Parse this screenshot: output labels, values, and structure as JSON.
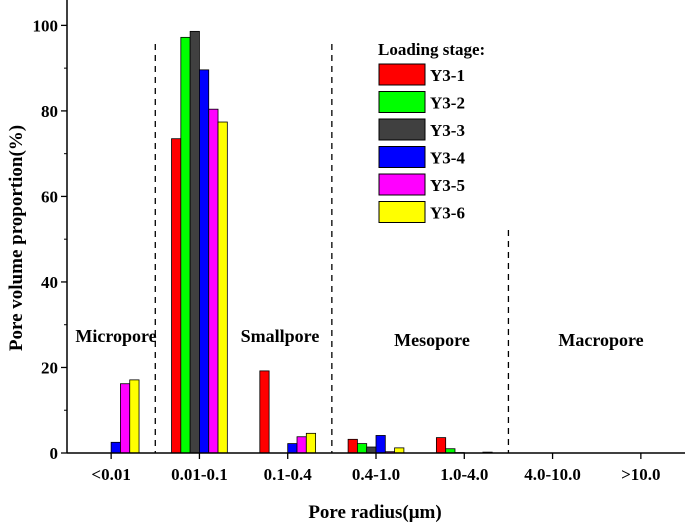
{
  "chart_data": {
    "type": "bar",
    "title": "",
    "xlabel": "Pore radius(μm)",
    "ylabel": "Pore volume proportion(%)",
    "ylim": [
      0,
      105
    ],
    "yticks": [
      0,
      20,
      40,
      60,
      80,
      100
    ],
    "grid": false,
    "legend_position": "top-right",
    "legend_title": "Loading stage:",
    "categories": [
      "<0.01",
      "0.01-0.1",
      "0.1-0.4",
      "0.4-1.0",
      "1.0-4.0",
      "4.0-10.0",
      ">10.0"
    ],
    "series": [
      {
        "name": "Y3-1",
        "color": "#ff0000",
        "values": [
          0,
          73.5,
          19.2,
          3.2,
          3.6,
          0,
          0
        ]
      },
      {
        "name": "Y3-2",
        "color": "#00ff00",
        "values": [
          0,
          97.2,
          0,
          2.2,
          1.0,
          0,
          0
        ]
      },
      {
        "name": "Y3-3",
        "color": "#404040",
        "values": [
          0,
          98.6,
          0,
          1.4,
          0.1,
          0,
          0
        ]
      },
      {
        "name": "Y3-4",
        "color": "#0000ff",
        "values": [
          2.5,
          89.6,
          2.2,
          4.1,
          0,
          0,
          0
        ]
      },
      {
        "name": "Y3-5",
        "color": "#ff00ff",
        "values": [
          16.2,
          80.4,
          3.8,
          0.3,
          0,
          0,
          0
        ]
      },
      {
        "name": "Y3-6",
        "color": "#ffff00",
        "values": [
          17.1,
          77.4,
          4.6,
          1.2,
          0.2,
          0,
          0
        ]
      }
    ],
    "regions": [
      {
        "label": "Micropore"
      },
      {
        "label": "Smallpore"
      },
      {
        "label": "Mesopore"
      },
      {
        "label": "Macropore"
      }
    ],
    "dividers_after_category": [
      0,
      2,
      4
    ]
  }
}
